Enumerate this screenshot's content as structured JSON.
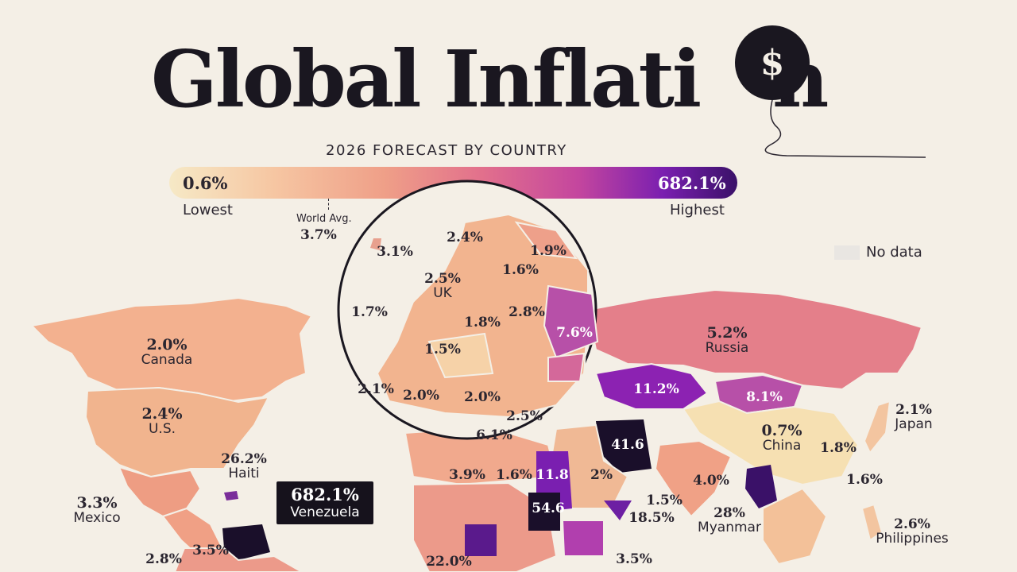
{
  "header": {
    "title": "Global Inflati",
    "title_tail": "n",
    "balloon_symbol": "$",
    "subtitle": "2026 FORECAST BY COUNTRY"
  },
  "legend": {
    "low_value": "0.6%",
    "low_label": "Lowest",
    "high_value": "682.1%",
    "high_label": "Highest",
    "avg_label": "World Avg.",
    "avg_value": "3.7%",
    "avg_position_fraction": 0.27,
    "no_data_label": "No data",
    "gradient_colors": [
      "#f6e9c6",
      "#f6c7a3",
      "#ef9f88",
      "#e2708c",
      "#c4469e",
      "#7a1fb0",
      "#3a1168"
    ]
  },
  "europe_inset": {
    "labels": [
      {
        "value": "3.1%",
        "name": ""
      },
      {
        "value": "2.4%",
        "name": ""
      },
      {
        "value": "1.9%",
        "name": ""
      },
      {
        "value": "1.6%",
        "name": ""
      },
      {
        "value": "2.5%",
        "name": "UK"
      },
      {
        "value": "1.7%",
        "name": ""
      },
      {
        "value": "1.8%",
        "name": ""
      },
      {
        "value": "2.8%",
        "name": ""
      },
      {
        "value": "7.6%",
        "name": ""
      },
      {
        "value": "1.5%",
        "name": ""
      },
      {
        "value": "2.1%",
        "name": ""
      },
      {
        "value": "2.0%",
        "name": ""
      },
      {
        "value": "2.0%",
        "name": ""
      },
      {
        "value": "2.5%",
        "name": ""
      },
      {
        "value": "6.1%",
        "name": ""
      }
    ]
  },
  "countries": [
    {
      "value": "2.0%",
      "name": "Canada"
    },
    {
      "value": "2.4%",
      "name": "U.S."
    },
    {
      "value": "3.3%",
      "name": "Mexico"
    },
    {
      "value": "26.2%",
      "name": "Haiti"
    },
    {
      "value": "682.1%",
      "name": "Venezuela"
    },
    {
      "value": "2.8%",
      "name": ""
    },
    {
      "value": "3.5%",
      "name": ""
    },
    {
      "value": "5.2%",
      "name": "Russia"
    },
    {
      "value": "11.2%",
      "name": ""
    },
    {
      "value": "8.1%",
      "name": ""
    },
    {
      "value": "0.7%",
      "name": "China"
    },
    {
      "value": "1.8%",
      "name": ""
    },
    {
      "value": "2.1%",
      "name": "Japan"
    },
    {
      "value": "1.6%",
      "name": ""
    },
    {
      "value": "2.6%",
      "name": "Philippines"
    },
    {
      "value": "41.6",
      "name": ""
    },
    {
      "value": "4.0%",
      "name": ""
    },
    {
      "value": "28%",
      "name": "Myanmar"
    },
    {
      "value": "1.5%",
      "name": ""
    },
    {
      "value": "18.5%",
      "name": ""
    },
    {
      "value": "3.9%",
      "name": ""
    },
    {
      "value": "1.6%",
      "name": ""
    },
    {
      "value": "11.8",
      "name": ""
    },
    {
      "value": "2%",
      "name": ""
    },
    {
      "value": "54.6",
      "name": ""
    },
    {
      "value": "22.0%",
      "name": ""
    },
    {
      "value": "3.5%",
      "name": ""
    }
  ]
}
